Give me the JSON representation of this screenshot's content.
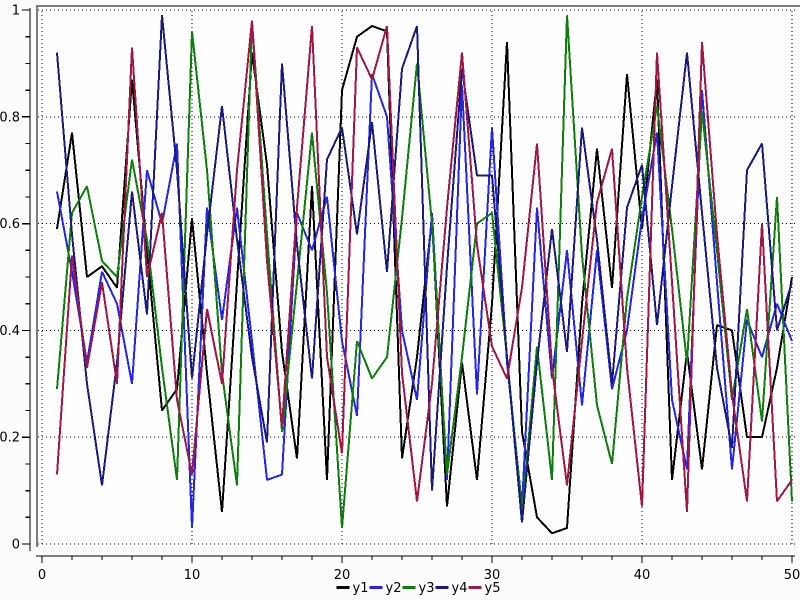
{
  "styles": {
    "page_background": "#fcfcfc",
    "plot_background": "#fefefe",
    "frame_color": "#7d7d7d",
    "grid_color": "#000000",
    "axis_color": "#000000",
    "tick_label_color": "#000000",
    "tick_font_size": 13,
    "legend_font_size": 13
  },
  "chart_data": {
    "type": "line",
    "title": "",
    "xlabel": "",
    "ylabel": "",
    "xlim": [
      0,
      50
    ],
    "ylim": [
      0,
      1
    ],
    "grid": true,
    "grid_style": "dotted",
    "x_ticks_major": [
      0,
      10,
      20,
      30,
      40,
      50
    ],
    "x_tick_labels": [
      "0",
      "10",
      "20",
      "30",
      "40",
      "50"
    ],
    "x_minor_step": 2,
    "y_ticks_major": [
      0,
      0.2,
      0.4,
      0.6,
      0.8,
      1
    ],
    "y_tick_labels": [
      "0",
      "0.2",
      "0.4",
      "0.6",
      "0.8",
      "1"
    ],
    "y_minor_step": 0.05,
    "x_start": 1,
    "x_step": 1,
    "legend_position": "bottom-center",
    "series": [
      {
        "name": "y1",
        "color": "#000000",
        "values": [
          0.59,
          0.77,
          0.5,
          0.52,
          0.48,
          0.87,
          0.55,
          0.25,
          0.29,
          0.61,
          0.32,
          0.06,
          0.49,
          0.92,
          0.71,
          0.36,
          0.16,
          0.67,
          0.12,
          0.85,
          0.95,
          0.97,
          0.96,
          0.16,
          0.35,
          0.61,
          0.07,
          0.34,
          0.12,
          0.45,
          0.94,
          0.21,
          0.05,
          0.02,
          0.03,
          0.45,
          0.74,
          0.48,
          0.88,
          0.59,
          0.87,
          0.12,
          0.36,
          0.14,
          0.41,
          0.4,
          0.2,
          0.2,
          0.33,
          0.5
        ]
      },
      {
        "name": "y2",
        "color": "#2525e6",
        "values": [
          0.66,
          0.51,
          0.34,
          0.51,
          0.45,
          0.3,
          0.7,
          0.6,
          0.75,
          0.03,
          0.63,
          0.42,
          0.63,
          0.38,
          0.12,
          0.13,
          0.62,
          0.55,
          0.65,
          0.38,
          0.24,
          0.88,
          0.8,
          0.4,
          0.27,
          0.62,
          0.12,
          0.86,
          0.28,
          0.78,
          0.34,
          0.07,
          0.63,
          0.31,
          0.55,
          0.26,
          0.55,
          0.29,
          0.4,
          0.61,
          0.77,
          0.27,
          0.14,
          0.85,
          0.49,
          0.14,
          0.42,
          0.35,
          0.45,
          0.38
        ]
      },
      {
        "name": "y3",
        "color": "#0d7d0d",
        "values": [
          0.29,
          0.62,
          0.67,
          0.53,
          0.5,
          0.72,
          0.57,
          0.33,
          0.12,
          0.96,
          0.7,
          0.32,
          0.11,
          0.98,
          0.58,
          0.21,
          0.49,
          0.77,
          0.47,
          0.03,
          0.38,
          0.31,
          0.35,
          0.61,
          0.9,
          0.6,
          0.13,
          0.35,
          0.6,
          0.62,
          0.35,
          0.06,
          0.37,
          0.12,
          0.99,
          0.54,
          0.26,
          0.15,
          0.46,
          0.65,
          0.82,
          0.59,
          0.34,
          0.81,
          0.55,
          0.27,
          0.44,
          0.23,
          0.65,
          0.08
        ]
      },
      {
        "name": "y4",
        "color": "#1a1a7d",
        "values": [
          0.92,
          0.58,
          0.3,
          0.11,
          0.34,
          0.66,
          0.43,
          0.99,
          0.7,
          0.31,
          0.58,
          0.82,
          0.57,
          0.35,
          0.19,
          0.9,
          0.56,
          0.31,
          0.72,
          0.78,
          0.58,
          0.79,
          0.51,
          0.89,
          0.97,
          0.1,
          0.52,
          0.89,
          0.69,
          0.69,
          0.35,
          0.04,
          0.34,
          0.59,
          0.36,
          0.78,
          0.57,
          0.3,
          0.63,
          0.71,
          0.41,
          0.67,
          0.92,
          0.62,
          0.33,
          0.18,
          0.7,
          0.75,
          0.4,
          0.49
        ]
      },
      {
        "name": "y5",
        "color": "#9e1745",
        "values": [
          0.13,
          0.54,
          0.33,
          0.49,
          0.3,
          0.93,
          0.5,
          0.62,
          0.27,
          0.13,
          0.44,
          0.3,
          0.7,
          0.98,
          0.53,
          0.22,
          0.63,
          0.97,
          0.35,
          0.17,
          0.93,
          0.87,
          0.97,
          0.32,
          0.08,
          0.3,
          0.63,
          0.92,
          0.56,
          0.37,
          0.31,
          0.48,
          0.75,
          0.33,
          0.11,
          0.38,
          0.64,
          0.74,
          0.33,
          0.07,
          0.92,
          0.49,
          0.06,
          0.94,
          0.58,
          0.28,
          0.08,
          0.6,
          0.08,
          0.12
        ]
      }
    ],
    "legend_labels": [
      "y1",
      "y2",
      "y3",
      "y4",
      "y5"
    ]
  }
}
